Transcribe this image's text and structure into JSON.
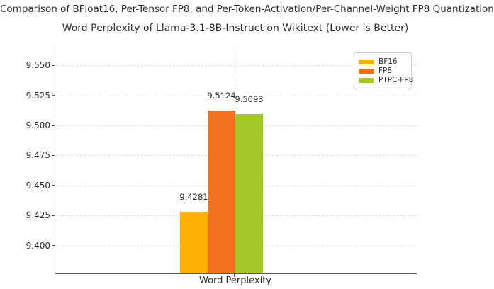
{
  "figure": {
    "suptitle": "Comparison of BFloat16, Per-Tensor FP8, and Per-Token-Activation/Per-Channel-Weight FP8 Quantization",
    "background": "#ffffff"
  },
  "chart_data": {
    "type": "bar",
    "title": "Word Perplexity of Llama-3.1-8B-Instruct on Wikitext (Lower is Better)",
    "xlabel": "Word Perplexity",
    "ylabel": "",
    "categories": [
      "Word Perplexity"
    ],
    "series": [
      {
        "name": "BF16",
        "values": [
          9.4281
        ],
        "label": "9.4281",
        "color": "#FFB000"
      },
      {
        "name": "FP8",
        "values": [
          9.5124
        ],
        "label": "9.5124",
        "color": "#F2701E"
      },
      {
        "name": "PTPC-FP8",
        "values": [
          9.5093
        ],
        "label": "9.5093",
        "color": "#A2C928"
      }
    ],
    "ylim": [
      9.3776,
      9.5665
    ],
    "yticks": [
      9.4,
      9.425,
      9.45,
      9.475,
      9.5,
      9.525,
      9.55
    ],
    "ytick_labels": [
      "9.400",
      "9.425",
      "9.450",
      "9.475",
      "9.500",
      "9.525",
      "9.550"
    ],
    "grid": true,
    "legend_position": "upper right"
  },
  "colors": {
    "spine": "#555555",
    "grid": "#e0e0e0",
    "text": "#2e2e2e"
  }
}
